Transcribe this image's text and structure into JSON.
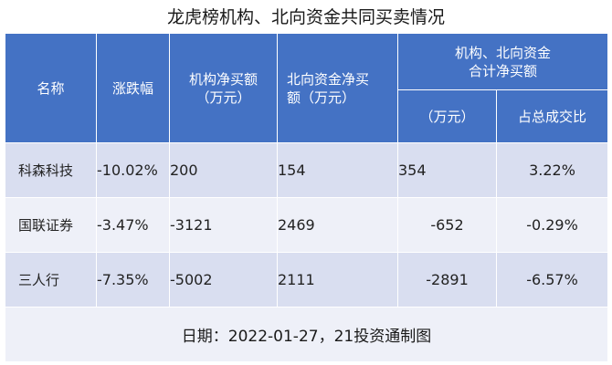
{
  "title": "龙虎榜机构、北向资金共同买卖情况",
  "header": {
    "name": "名称",
    "change": "涨跌幅",
    "inst_line1": "机构净买额",
    "inst_line2": "（万元）",
    "north_line1": "北向资金净买",
    "north_line2": "额（万元）",
    "combined_line1": "机构、北向资金",
    "combined_line2": "合计净买额",
    "combined_unit": "（万元）",
    "ratio": "占总成交比"
  },
  "rows": [
    {
      "name": "科森科技",
      "change": "-10.02%",
      "inst": "200",
      "north": "154",
      "combined": "354",
      "ratio": "3.22%"
    },
    {
      "name": "国联证券",
      "change": "-3.47%",
      "inst": "-3121",
      "north": "2469",
      "combined": "-652",
      "ratio": "-0.29%"
    },
    {
      "name": "三人行",
      "change": "-7.35%",
      "inst": "-5002",
      "north": "2111",
      "combined": "-2891",
      "ratio": "-6.57%"
    }
  ],
  "footer": "日期：2022-01-27，21投资通制图"
}
